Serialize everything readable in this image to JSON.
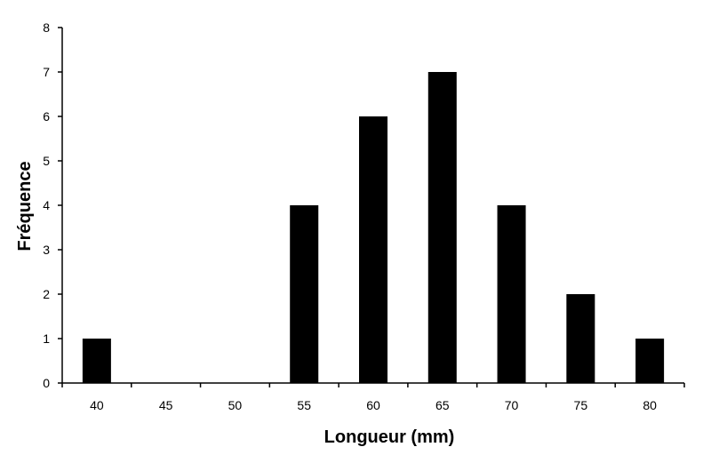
{
  "chart_data": {
    "type": "bar",
    "title": "",
    "xlabel": "Longueur (mm)",
    "ylabel": "Fréquence",
    "categories": [
      "40",
      "45",
      "50",
      "55",
      "60",
      "65",
      "70",
      "75",
      "80"
    ],
    "values": [
      1,
      0,
      0,
      4,
      6,
      7,
      4,
      2,
      1
    ],
    "yticks": [
      "0",
      "1",
      "2",
      "3",
      "4",
      "5",
      "6",
      "7",
      "8"
    ],
    "ylim": [
      0,
      8
    ],
    "grid": false,
    "legend": "none",
    "bar_color": "#000000",
    "axis_color": "#000000"
  }
}
